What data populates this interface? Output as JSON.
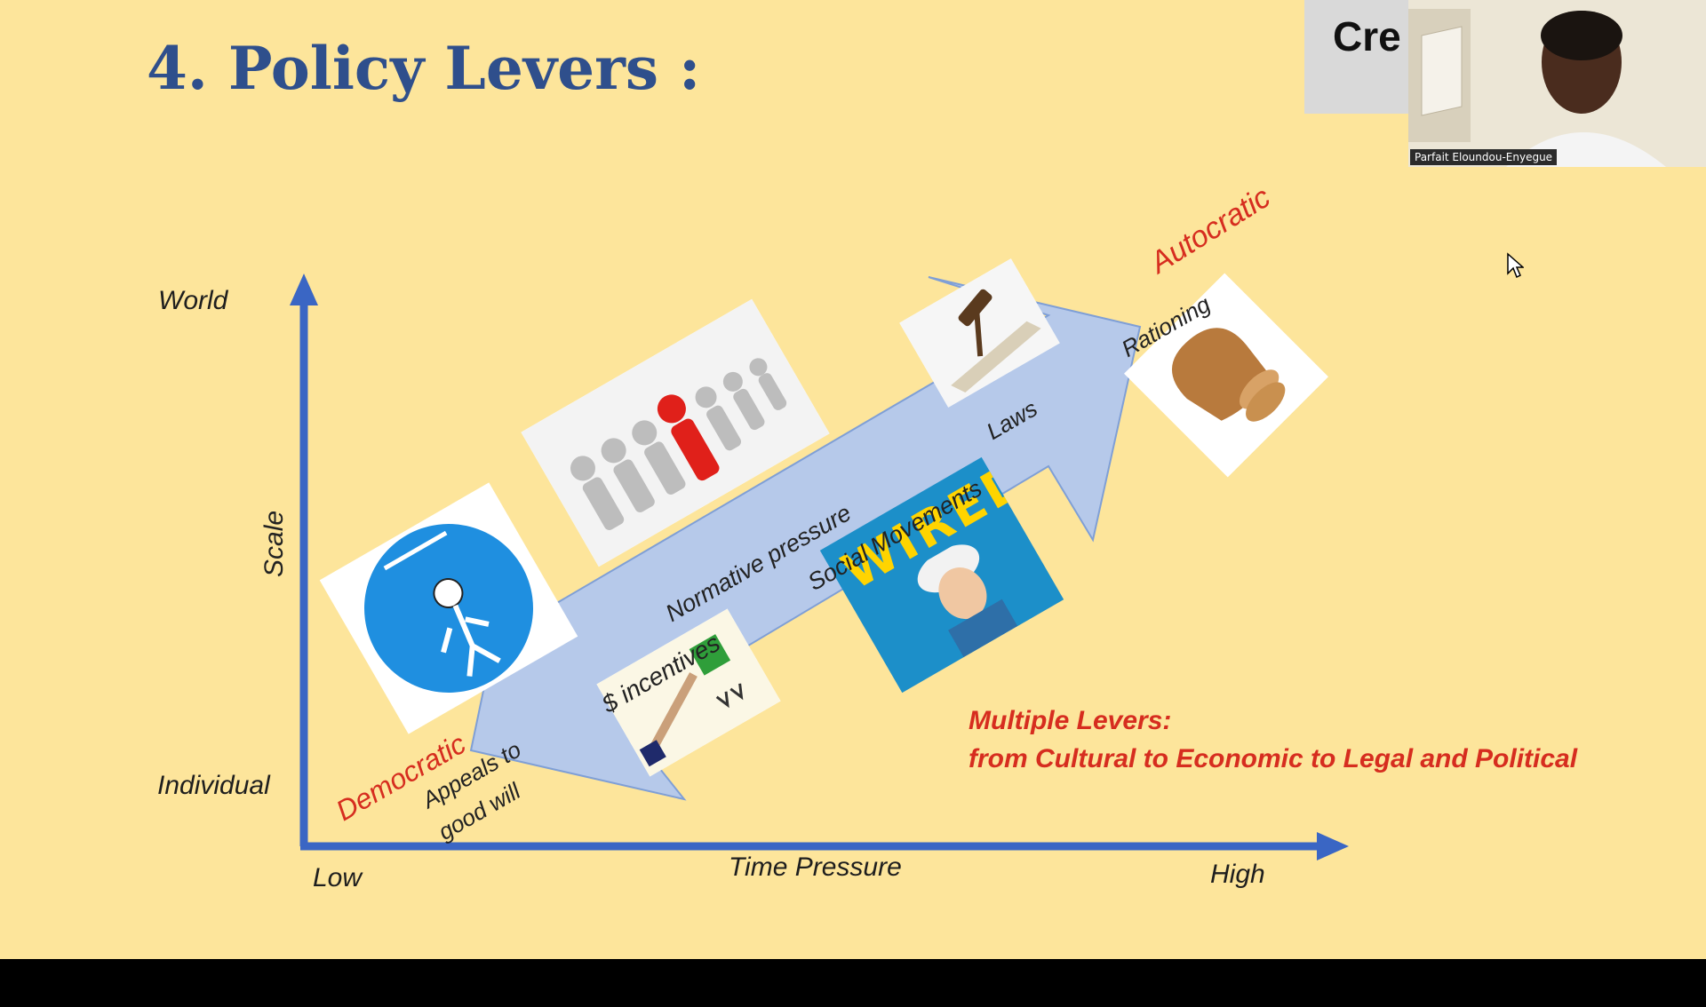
{
  "slide": {
    "title": "4. Policy Levers :",
    "y_axis": {
      "name": "Scale",
      "top": "World",
      "bottom": "Individual"
    },
    "x_axis": {
      "name": "Time Pressure",
      "left": "Low",
      "right": "High"
    },
    "ends": {
      "left": "Democratic",
      "right": "Autocratic"
    },
    "levers": [
      "Appeals to good will",
      "$ incentives",
      "Normative pressure",
      "Social Movements",
      "Laws",
      "Rationing"
    ],
    "appeals_line1": "Appeals to",
    "appeals_line2": "good will",
    "magazine_title": "WIRED",
    "summary": {
      "line1": "Multiple Levers:",
      "line2": "from Cultural to Economic to Legal and Political"
    },
    "colors": {
      "background": "#fde59b",
      "axis": "#3a66c4",
      "arrow": "#b6c9ea",
      "accent": "#d62d1f"
    }
  },
  "video": {
    "thumbnail_text": "Cre",
    "participant_name": "Parfait Eloundou-Enyegue"
  }
}
